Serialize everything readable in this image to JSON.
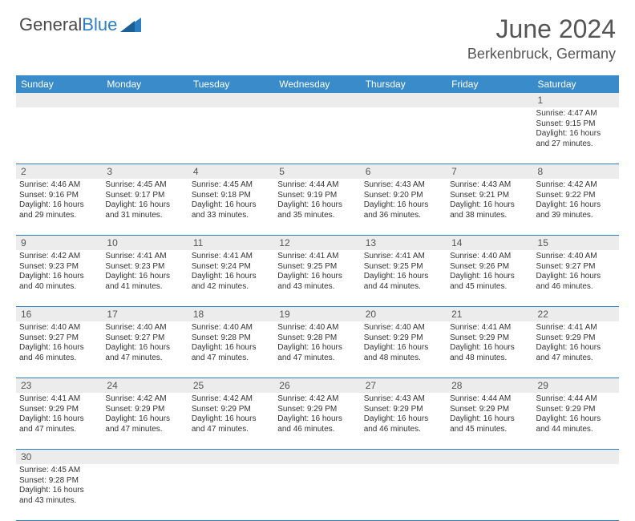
{
  "brand": {
    "name1": "General",
    "name2": "Blue"
  },
  "title": "June 2024",
  "location": "Berkenbruck, Germany",
  "dow": [
    "Sunday",
    "Monday",
    "Tuesday",
    "Wednesday",
    "Thursday",
    "Friday",
    "Saturday"
  ],
  "colors": {
    "header_bar": "#3a8bc9",
    "daynum_bg": "#ececec",
    "week_border": "#2b7ec2",
    "text": "#333333",
    "title_text": "#555555"
  },
  "weeks": [
    [
      null,
      null,
      null,
      null,
      null,
      null,
      {
        "n": "1",
        "sr": "Sunrise: 4:47 AM",
        "ss": "Sunset: 9:15 PM",
        "d1": "Daylight: 16 hours",
        "d2": "and 27 minutes."
      }
    ],
    [
      {
        "n": "2",
        "sr": "Sunrise: 4:46 AM",
        "ss": "Sunset: 9:16 PM",
        "d1": "Daylight: 16 hours",
        "d2": "and 29 minutes."
      },
      {
        "n": "3",
        "sr": "Sunrise: 4:45 AM",
        "ss": "Sunset: 9:17 PM",
        "d1": "Daylight: 16 hours",
        "d2": "and 31 minutes."
      },
      {
        "n": "4",
        "sr": "Sunrise: 4:45 AM",
        "ss": "Sunset: 9:18 PM",
        "d1": "Daylight: 16 hours",
        "d2": "and 33 minutes."
      },
      {
        "n": "5",
        "sr": "Sunrise: 4:44 AM",
        "ss": "Sunset: 9:19 PM",
        "d1": "Daylight: 16 hours",
        "d2": "and 35 minutes."
      },
      {
        "n": "6",
        "sr": "Sunrise: 4:43 AM",
        "ss": "Sunset: 9:20 PM",
        "d1": "Daylight: 16 hours",
        "d2": "and 36 minutes."
      },
      {
        "n": "7",
        "sr": "Sunrise: 4:43 AM",
        "ss": "Sunset: 9:21 PM",
        "d1": "Daylight: 16 hours",
        "d2": "and 38 minutes."
      },
      {
        "n": "8",
        "sr": "Sunrise: 4:42 AM",
        "ss": "Sunset: 9:22 PM",
        "d1": "Daylight: 16 hours",
        "d2": "and 39 minutes."
      }
    ],
    [
      {
        "n": "9",
        "sr": "Sunrise: 4:42 AM",
        "ss": "Sunset: 9:23 PM",
        "d1": "Daylight: 16 hours",
        "d2": "and 40 minutes."
      },
      {
        "n": "10",
        "sr": "Sunrise: 4:41 AM",
        "ss": "Sunset: 9:23 PM",
        "d1": "Daylight: 16 hours",
        "d2": "and 41 minutes."
      },
      {
        "n": "11",
        "sr": "Sunrise: 4:41 AM",
        "ss": "Sunset: 9:24 PM",
        "d1": "Daylight: 16 hours",
        "d2": "and 42 minutes."
      },
      {
        "n": "12",
        "sr": "Sunrise: 4:41 AM",
        "ss": "Sunset: 9:25 PM",
        "d1": "Daylight: 16 hours",
        "d2": "and 43 minutes."
      },
      {
        "n": "13",
        "sr": "Sunrise: 4:41 AM",
        "ss": "Sunset: 9:25 PM",
        "d1": "Daylight: 16 hours",
        "d2": "and 44 minutes."
      },
      {
        "n": "14",
        "sr": "Sunrise: 4:40 AM",
        "ss": "Sunset: 9:26 PM",
        "d1": "Daylight: 16 hours",
        "d2": "and 45 minutes."
      },
      {
        "n": "15",
        "sr": "Sunrise: 4:40 AM",
        "ss": "Sunset: 9:27 PM",
        "d1": "Daylight: 16 hours",
        "d2": "and 46 minutes."
      }
    ],
    [
      {
        "n": "16",
        "sr": "Sunrise: 4:40 AM",
        "ss": "Sunset: 9:27 PM",
        "d1": "Daylight: 16 hours",
        "d2": "and 46 minutes."
      },
      {
        "n": "17",
        "sr": "Sunrise: 4:40 AM",
        "ss": "Sunset: 9:27 PM",
        "d1": "Daylight: 16 hours",
        "d2": "and 47 minutes."
      },
      {
        "n": "18",
        "sr": "Sunrise: 4:40 AM",
        "ss": "Sunset: 9:28 PM",
        "d1": "Daylight: 16 hours",
        "d2": "and 47 minutes."
      },
      {
        "n": "19",
        "sr": "Sunrise: 4:40 AM",
        "ss": "Sunset: 9:28 PM",
        "d1": "Daylight: 16 hours",
        "d2": "and 47 minutes."
      },
      {
        "n": "20",
        "sr": "Sunrise: 4:40 AM",
        "ss": "Sunset: 9:29 PM",
        "d1": "Daylight: 16 hours",
        "d2": "and 48 minutes."
      },
      {
        "n": "21",
        "sr": "Sunrise: 4:41 AM",
        "ss": "Sunset: 9:29 PM",
        "d1": "Daylight: 16 hours",
        "d2": "and 48 minutes."
      },
      {
        "n": "22",
        "sr": "Sunrise: 4:41 AM",
        "ss": "Sunset: 9:29 PM",
        "d1": "Daylight: 16 hours",
        "d2": "and 47 minutes."
      }
    ],
    [
      {
        "n": "23",
        "sr": "Sunrise: 4:41 AM",
        "ss": "Sunset: 9:29 PM",
        "d1": "Daylight: 16 hours",
        "d2": "and 47 minutes."
      },
      {
        "n": "24",
        "sr": "Sunrise: 4:42 AM",
        "ss": "Sunset: 9:29 PM",
        "d1": "Daylight: 16 hours",
        "d2": "and 47 minutes."
      },
      {
        "n": "25",
        "sr": "Sunrise: 4:42 AM",
        "ss": "Sunset: 9:29 PM",
        "d1": "Daylight: 16 hours",
        "d2": "and 47 minutes."
      },
      {
        "n": "26",
        "sr": "Sunrise: 4:42 AM",
        "ss": "Sunset: 9:29 PM",
        "d1": "Daylight: 16 hours",
        "d2": "and 46 minutes."
      },
      {
        "n": "27",
        "sr": "Sunrise: 4:43 AM",
        "ss": "Sunset: 9:29 PM",
        "d1": "Daylight: 16 hours",
        "d2": "and 46 minutes."
      },
      {
        "n": "28",
        "sr": "Sunrise: 4:44 AM",
        "ss": "Sunset: 9:29 PM",
        "d1": "Daylight: 16 hours",
        "d2": "and 45 minutes."
      },
      {
        "n": "29",
        "sr": "Sunrise: 4:44 AM",
        "ss": "Sunset: 9:29 PM",
        "d1": "Daylight: 16 hours",
        "d2": "and 44 minutes."
      }
    ],
    [
      {
        "n": "30",
        "sr": "Sunrise: 4:45 AM",
        "ss": "Sunset: 9:28 PM",
        "d1": "Daylight: 16 hours",
        "d2": "and 43 minutes."
      },
      null,
      null,
      null,
      null,
      null,
      null
    ]
  ]
}
